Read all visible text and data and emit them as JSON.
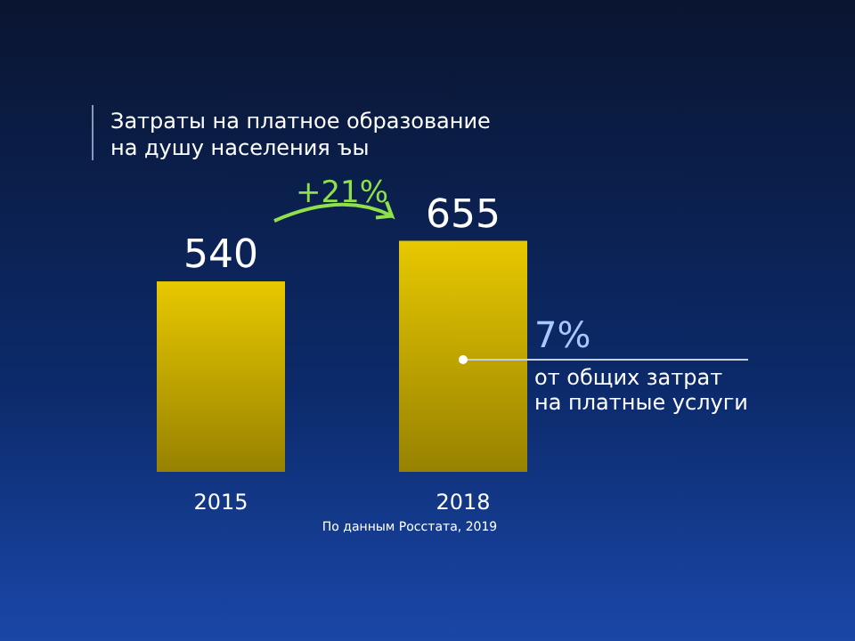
{
  "chart_data": {
    "type": "bar",
    "title": "Затраты на платное образование\nна душу населения ъы",
    "categories": [
      "2015",
      "2018"
    ],
    "values": [
      540,
      655
    ],
    "color": "#e8c800",
    "data_labels": true,
    "annotations": [
      "+21%",
      "7%\nот общих затрат\nна платные услуги",
      "По данным Росстата, 2019"
    ]
  }
}
